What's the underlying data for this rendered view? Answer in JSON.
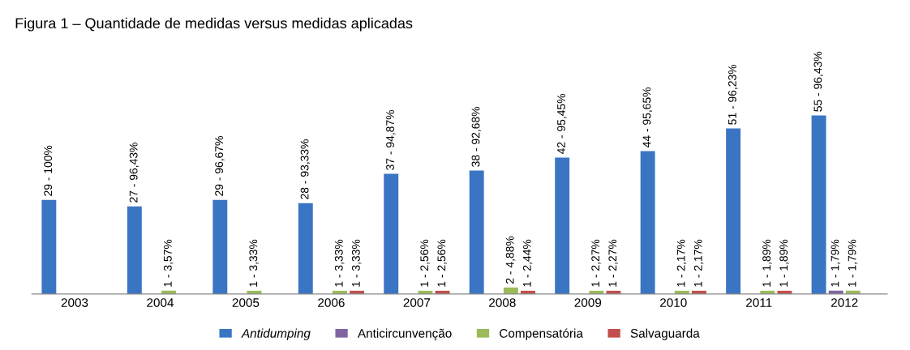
{
  "chart_data": {
    "type": "bar",
    "title": "Figura 1 – Quantidade de medidas versus medidas aplicadas",
    "categories": [
      "2003",
      "2004",
      "2005",
      "2006",
      "2007",
      "2008",
      "2009",
      "2010",
      "2011",
      "2012"
    ],
    "series": [
      {
        "name": "Antidumping",
        "color": "#3a75c4",
        "values": [
          29,
          27,
          29,
          28,
          37,
          38,
          42,
          44,
          51,
          55
        ],
        "value_labels": [
          "29 - 100%",
          "27 - 96,43%",
          "29 - 96,67%",
          "28 - 93,33%",
          "37 - 94,87%",
          "38 - 92,68%",
          "42 - 95,45%",
          "44 - 95,65%",
          "51 - 96,23%",
          "55 - 96,43%"
        ]
      },
      {
        "name": "Anticircunvenção",
        "color": "#8064a2",
        "values": [
          null,
          null,
          null,
          null,
          null,
          null,
          null,
          null,
          null,
          1
        ],
        "value_labels": [
          null,
          null,
          null,
          null,
          null,
          null,
          null,
          null,
          null,
          "1 - 1,79%"
        ]
      },
      {
        "name": "Compensatória",
        "color": "#9bbb59",
        "values": [
          null,
          1,
          1,
          1,
          1,
          2,
          1,
          1,
          1,
          1
        ],
        "value_labels": [
          null,
          "1 - 3,57%",
          "1 - 3,33%",
          "1 - 3,33%",
          "1 - 2,56%",
          "2 - 4,88%",
          "1 - 2,27%",
          "1 - 2,17%",
          "1 - 1,89%",
          "1 - 1,79%"
        ]
      },
      {
        "name": "Salvaguarda",
        "color": "#c0504d",
        "values": [
          null,
          null,
          null,
          1,
          1,
          1,
          1,
          1,
          1,
          null
        ],
        "value_labels": [
          null,
          null,
          null,
          "1 - 3,33%",
          "1 - 2,56%",
          "1 - 2,44%",
          "1 - 2,27%",
          "1 - 2,17%",
          "1 - 1,89%",
          null
        ]
      }
    ],
    "tick_labels": "x",
    "legend": "bottom"
  }
}
